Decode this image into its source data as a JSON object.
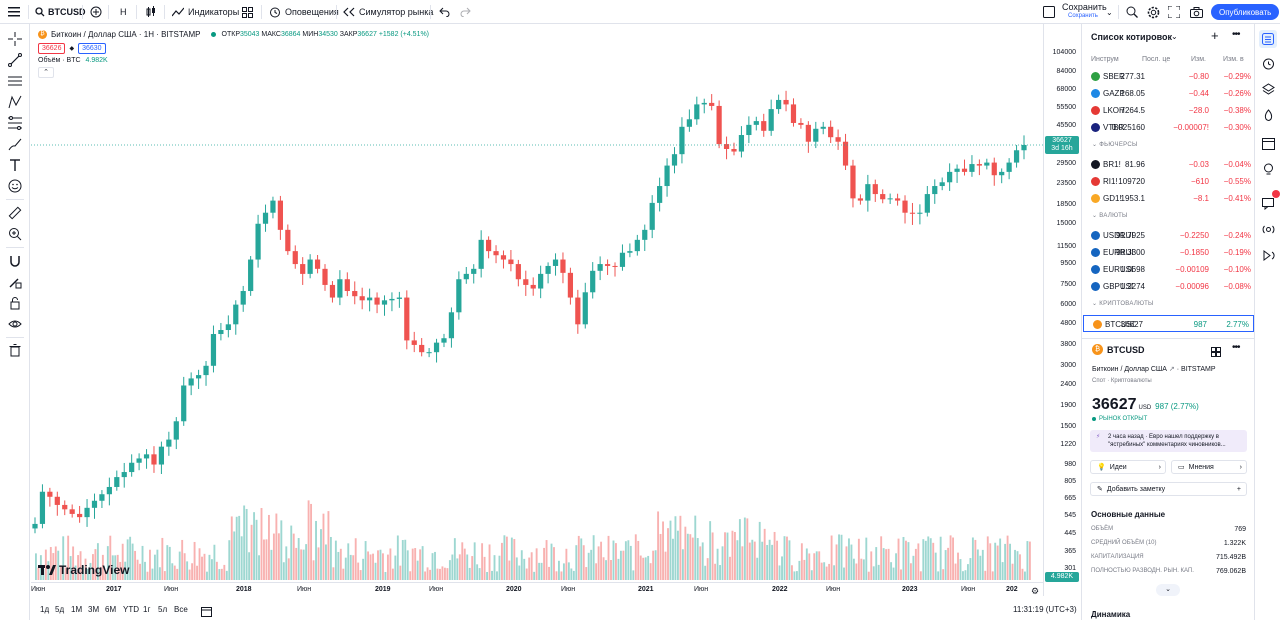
{
  "topbar": {
    "symbol": "BTCUSD",
    "interval": "H",
    "indicators": "Индикаторы",
    "alerts": "Оповещения",
    "replay": "Симулятор рынка",
    "save": "Сохранить",
    "save_sub": "Сохранить",
    "publish": "Опубликовать"
  },
  "legend": {
    "title": "Биткоин / Доллар США · 1Н · BITSTAMP",
    "ohlc": {
      "open_label": "ОТКР",
      "open": "35043",
      "high_label": "МАКС",
      "high": "36864",
      "low_label": "МИН",
      "low": "34530",
      "close_label": "ЗАКР",
      "close": "36627",
      "change": "+1582 (+4.51%)"
    },
    "sell": "36626",
    "buy": "36630",
    "volume_label": "Объём · BTC",
    "volume": "4.982K"
  },
  "price_scale": [
    "104000",
    "84000",
    "68000",
    "55500",
    "45500",
    "36000",
    "29500",
    "23500",
    "18500",
    "15000",
    "11500",
    "9500",
    "7500",
    "6000",
    "4800",
    "3800",
    "3000",
    "2400",
    "1900",
    "1500",
    "1220",
    "980",
    "805",
    "665",
    "545",
    "445",
    "365",
    "301"
  ],
  "price_label": {
    "price": "36627",
    "countdown": "3d 16h"
  },
  "volume_label": "4.982K",
  "time_scale": [
    "Июн",
    "2017",
    "Июн",
    "2018",
    "Июн",
    "2019",
    "Июн",
    "2020",
    "Июн",
    "2021",
    "Июн",
    "2022",
    "Июн",
    "2023",
    "Июн",
    "202"
  ],
  "ranges": [
    "1д",
    "5д",
    "1М",
    "3М",
    "6М",
    "YTD",
    "1г",
    "5л",
    "Все"
  ],
  "clock": "11:31:19 (UTC+3)",
  "branding": "TradingView",
  "watchlist": {
    "title": "Список котировок",
    "columns": [
      "Инструм",
      "Посл. це",
      "Изм.",
      "Изм. в"
    ],
    "groups": [
      {
        "name": "",
        "rows": [
          {
            "sym": "SBER",
            "last": "277.31",
            "chg": "−0.80",
            "pct": "−0.29%",
            "color": "#2ea043"
          },
          {
            "sym": "GAZP",
            "last": "168.05",
            "chg": "−0.44",
            "pct": "−0.26%",
            "color": "#1e88e5"
          },
          {
            "sym": "LKOH",
            "last": "7264.5",
            "chg": "−28.0",
            "pct": "−0.38%",
            "color": "#e53935"
          },
          {
            "sym": "VTBR",
            "last": "0.025160",
            "chg": "−0.00007!",
            "pct": "−0.30%",
            "color": "#1a237e"
          }
        ]
      },
      {
        "name": "ФЬЮЧЕРСЫ",
        "rows": [
          {
            "sym": "BR1!",
            "last": "81.96",
            "chg": "−0.03",
            "pct": "−0.04%",
            "color": "#131722"
          },
          {
            "sym": "RI1!",
            "last": "109720",
            "chg": "−610",
            "pct": "−0.55%",
            "color": "#e53935"
          },
          {
            "sym": "GD1!",
            "last": "1953.1",
            "chg": "−8.1",
            "pct": "−0.41%",
            "color": "#f9a825"
          }
        ]
      },
      {
        "name": "ВАЛЮТЫ",
        "rows": [
          {
            "sym": "USDRUB",
            "last": "91.7925",
            "chg": "−0.2250",
            "pct": "−0.24%",
            "color": "#1565c0"
          },
          {
            "sym": "EURRUB",
            "last": "98.3300",
            "chg": "−0.1850",
            "pct": "−0.19%",
            "color": "#1565c0"
          },
          {
            "sym": "EURUSD",
            "last": "1.0698",
            "chg": "−0.00109",
            "pct": "−0.10%",
            "color": "#1565c0"
          },
          {
            "sym": "GBPUSD",
            "last": "1.2274",
            "chg": "−0.00096",
            "pct": "−0.08%",
            "color": "#1565c0"
          }
        ]
      },
      {
        "name": "КРИПТОВАЛЮТЫ",
        "rows": [
          {
            "sym": "BTCUSD",
            "last": "36627",
            "chg": "987",
            "pct": "2.77%",
            "color": "#f7931a"
          }
        ]
      }
    ]
  },
  "details": {
    "symbol": "BTCUSD",
    "name": "Биткоин / Доллар США",
    "exchange": "BITSTAMP",
    "type": "Спот · Криптовалюты",
    "price": "36627",
    "currency": "USD",
    "change": "987 (2.77%)",
    "market": "РЫНОК ОТКРЫТ",
    "news_time": "2 часа назад",
    "news_text": "Евро нашел поддержку в \"ястребиных\" комментариях чиновников...",
    "ideas": "Идеи",
    "opinions": "Мнения",
    "add_note": "Добавить заметку",
    "fundamentals_title": "Основные данные",
    "fundamentals": [
      {
        "label": "ОБЪЁМ",
        "value": "769"
      },
      {
        "label": "СРЕДНИЙ ОБЪЁМ (10)",
        "value": "1.322K"
      },
      {
        "label": "КАПИТАЛИЗАЦИЯ",
        "value": "715.492B"
      },
      {
        "label": "ПОЛНОСТЬЮ РАЗВОДН. РЫН. КАП.",
        "value": "769.062B"
      }
    ],
    "dynamics": "Динамика"
  },
  "colors": {
    "up": "#26a69a",
    "down": "#ef5350",
    "accent": "#2962ff",
    "volume_up": "#26a69a",
    "volume_down": "#ef5350"
  },
  "chart_data": {
    "type": "candlestick",
    "symbol": "BTCUSD",
    "scale": "log",
    "ylim": [
      300,
      115000
    ],
    "x_ticks": [
      "Июн",
      "2017",
      "Июн",
      "2018",
      "Июн",
      "2019",
      "Июн",
      "2020",
      "Июн",
      "2021",
      "Июн",
      "2022",
      "Июн",
      "2023",
      "Июн",
      "202"
    ],
    "closes": [
      500,
      720,
      680,
      620,
      590,
      560,
      540,
      600,
      650,
      700,
      760,
      850,
      900,
      1000,
      1050,
      1100,
      980,
      1200,
      1300,
      1600,
      2400,
      2600,
      2700,
      3000,
      4300,
      4500,
      4800,
      6000,
      7000,
      10000,
      15000,
      17000,
      19500,
      14000,
      11000,
      9500,
      8500,
      10000,
      9000,
      7500,
      6500,
      8000,
      7000,
      6600,
      6300,
      6500,
      6000,
      6300,
      6400,
      6500,
      4000,
      3800,
      3500,
      3500,
      3900,
      4100,
      5500,
      8000,
      8500,
      9000,
      12500,
      11000,
      10500,
      10000,
      9500,
      8000,
      7500,
      7200,
      8500,
      9300,
      10000,
      8600,
      6500,
      4800,
      6900,
      8800,
      9500,
      9300,
      9200,
      10800,
      11000,
      12500,
      14000,
      19000,
      23000,
      29000,
      33000,
      45000,
      49000,
      58000,
      59000,
      57000,
      37000,
      35000,
      34000,
      41000,
      46000,
      48000,
      43000,
      55000,
      61000,
      58000,
      47000,
      46000,
      38000,
      44000,
      45000,
      40000,
      38000,
      29000,
      20000,
      19500,
      23500,
      21000,
      19800,
      20000,
      19500,
      17000,
      16800,
      17000,
      21000,
      23000,
      24000,
      27000,
      28000,
      27000,
      29500,
      29000,
      30000,
      26000,
      27000,
      30000,
      34500,
      36627
    ]
  }
}
